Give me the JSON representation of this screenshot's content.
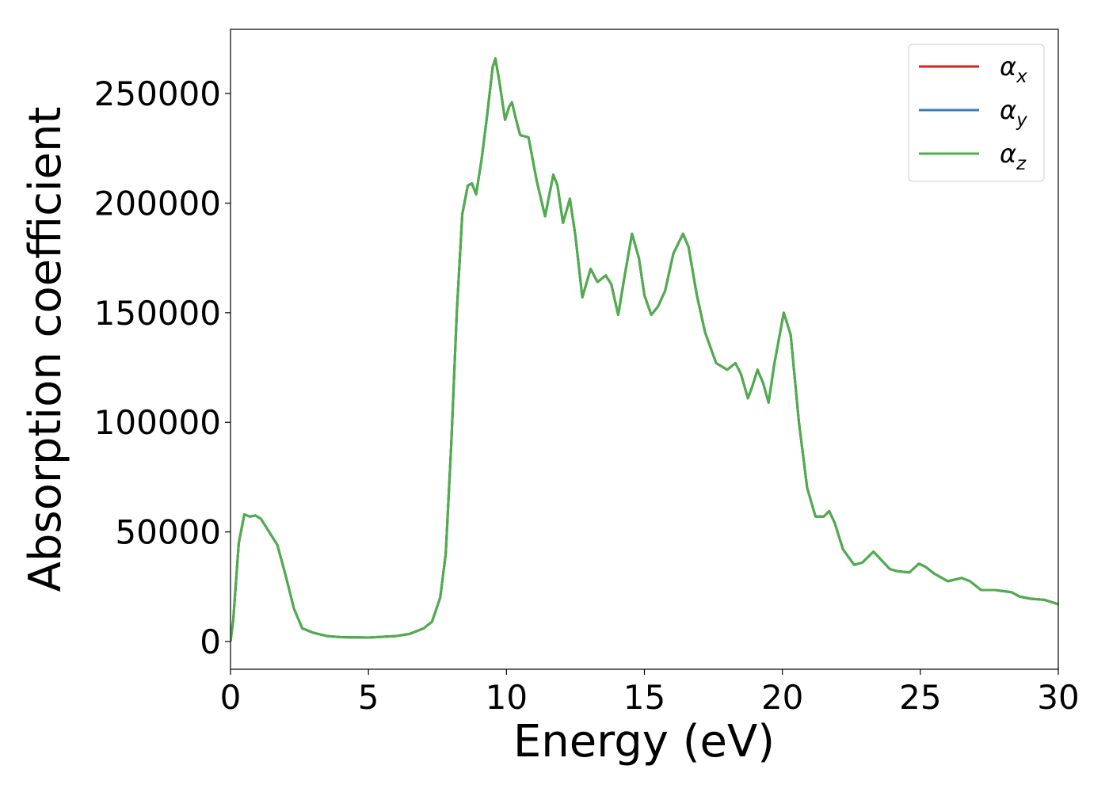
{
  "chart_data": {
    "type": "line",
    "xlabel": "Energy (eV)",
    "ylabel": "Absorption coefficient",
    "x": [
      0,
      0.1,
      0.3,
      0.5,
      0.7,
      0.9,
      1.1,
      1.4,
      1.7,
      2.0,
      2.3,
      2.6,
      3.0,
      3.5,
      4.0,
      5.0,
      6.0,
      6.5,
      7.0,
      7.3,
      7.6,
      7.8,
      8.0,
      8.2,
      8.4,
      8.6,
      8.75,
      8.9,
      9.1,
      9.3,
      9.5,
      9.6,
      9.75,
      9.95,
      10.1,
      10.2,
      10.35,
      10.5,
      10.8,
      11.1,
      11.4,
      11.7,
      11.85,
      12.05,
      12.3,
      12.5,
      12.75,
      13.05,
      13.3,
      13.6,
      13.8,
      14.05,
      14.3,
      14.55,
      14.8,
      15.0,
      15.25,
      15.5,
      15.75,
      16.05,
      16.4,
      16.6,
      16.9,
      17.2,
      17.6,
      18.0,
      18.3,
      18.5,
      18.75,
      18.9,
      19.1,
      19.3,
      19.5,
      19.7,
      20.05,
      20.3,
      20.6,
      20.9,
      21.2,
      21.5,
      21.7,
      21.9,
      22.2,
      22.6,
      22.9,
      23.3,
      23.6,
      23.9,
      24.2,
      24.6,
      24.95,
      25.2,
      25.5,
      26.0,
      26.5,
      26.8,
      27.2,
      27.7,
      28.0,
      28.3,
      28.6,
      29.0,
      29.5,
      30
    ],
    "series": [
      {
        "name": "αx",
        "color": "#e41a1c",
        "values": [
          0,
          10000,
          45000,
          58000,
          57000,
          57500,
          56000,
          50000,
          44000,
          30000,
          15000,
          6000,
          4000,
          2500,
          2000,
          1800,
          2500,
          3500,
          6000,
          9000,
          20000,
          40000,
          90000,
          150000,
          195000,
          208000,
          209000,
          204000,
          220000,
          240000,
          262000,
          266000,
          255000,
          238000,
          244000,
          246000,
          238000,
          231000,
          230000,
          210000,
          194000,
          213000,
          208000,
          191000,
          202000,
          185000,
          157000,
          170000,
          164000,
          167000,
          163000,
          149000,
          168000,
          186000,
          175000,
          158000,
          149000,
          153000,
          160000,
          177000,
          186000,
          180000,
          158000,
          141000,
          127000,
          124000,
          127000,
          122000,
          111000,
          116000,
          124000,
          118000,
          109000,
          126000,
          150000,
          140000,
          100000,
          70000,
          57000,
          57000,
          59500,
          54000,
          42000,
          35000,
          36000,
          41000,
          37000,
          33000,
          32000,
          31500,
          35500,
          34000,
          31000,
          27500,
          29000,
          27500,
          23500,
          23500,
          23000,
          22500,
          20500,
          19500,
          19000,
          17000
        ]
      },
      {
        "name": "αy",
        "color": "#377eb8",
        "values": [
          0,
          10000,
          45000,
          58000,
          57000,
          57500,
          56000,
          50000,
          44000,
          30000,
          15000,
          6000,
          4000,
          2500,
          2000,
          1800,
          2500,
          3500,
          6000,
          9000,
          20000,
          40000,
          90000,
          150000,
          195000,
          208000,
          209000,
          204000,
          220000,
          240000,
          262000,
          266000,
          255000,
          238000,
          244000,
          246000,
          238000,
          231000,
          230000,
          210000,
          194000,
          213000,
          208000,
          191000,
          202000,
          185000,
          157000,
          170000,
          164000,
          167000,
          163000,
          149000,
          168000,
          186000,
          175000,
          158000,
          149000,
          153000,
          160000,
          177000,
          186000,
          180000,
          158000,
          141000,
          127000,
          124000,
          127000,
          122000,
          111000,
          116000,
          124000,
          118000,
          109000,
          126000,
          150000,
          140000,
          100000,
          70000,
          57000,
          57000,
          59500,
          54000,
          42000,
          35000,
          36000,
          41000,
          37000,
          33000,
          32000,
          31500,
          35500,
          34000,
          31000,
          27500,
          29000,
          27500,
          23500,
          23500,
          23000,
          22500,
          20500,
          19500,
          19000,
          17000
        ]
      },
      {
        "name": "αz",
        "color": "#4daf4a",
        "values": [
          0,
          10000,
          45000,
          58000,
          57000,
          57500,
          56000,
          50000,
          44000,
          30000,
          15000,
          6000,
          4000,
          2500,
          2000,
          1800,
          2500,
          3500,
          6000,
          9000,
          20000,
          40000,
          90000,
          150000,
          195000,
          208000,
          209000,
          204000,
          220000,
          240000,
          262000,
          266000,
          255000,
          238000,
          244000,
          246000,
          238000,
          231000,
          230000,
          210000,
          194000,
          213000,
          208000,
          191000,
          202000,
          185000,
          157000,
          170000,
          164000,
          167000,
          163000,
          149000,
          168000,
          186000,
          175000,
          158000,
          149000,
          153000,
          160000,
          177000,
          186000,
          180000,
          158000,
          141000,
          127000,
          124000,
          127000,
          122000,
          111000,
          116000,
          124000,
          118000,
          109000,
          126000,
          150000,
          140000,
          100000,
          70000,
          57000,
          57000,
          59500,
          54000,
          42000,
          35000,
          36000,
          41000,
          37000,
          33000,
          32000,
          31500,
          35500,
          34000,
          31000,
          27500,
          29000,
          27500,
          23500,
          23500,
          23000,
          22500,
          20500,
          19500,
          19000,
          17000
        ]
      }
    ],
    "xlim": [
      0,
      30
    ],
    "xticks": [
      0,
      5,
      10,
      15,
      20,
      25,
      30
    ],
    "ylim": [
      -12650,
      279300
    ],
    "yticks": [
      0,
      50000,
      100000,
      150000,
      200000,
      250000
    ],
    "legend": "upper right"
  }
}
